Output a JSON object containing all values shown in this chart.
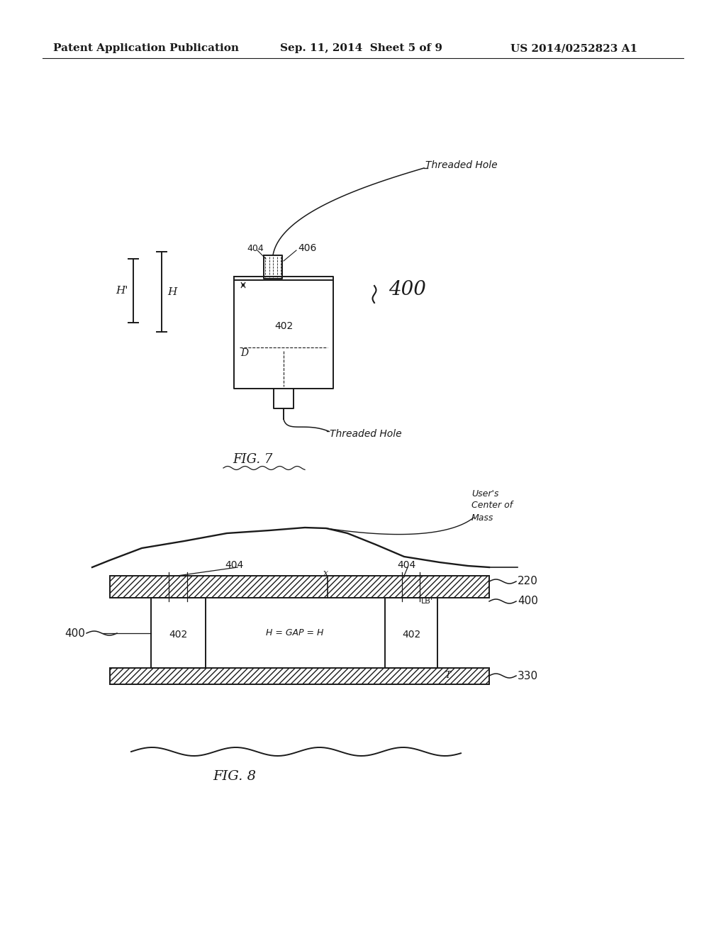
{
  "bg_color": "#ffffff",
  "header_left": "Patent Application Publication",
  "header_center": "Sep. 11, 2014  Sheet 5 of 9",
  "header_right": "US 2014/0252823 A1",
  "fig7_label": "FIG. 7",
  "fig8_label": "FIG. 8",
  "label_400": "400",
  "label_402": "402",
  "label_404": "404",
  "label_406": "406",
  "label_H1": "H'",
  "label_H2": "H",
  "label_threaded_hole_top": "Threaded Hole",
  "label_threaded_hole_bot": "Threaded Hole",
  "label_users_center": "User's\nCenter of\nMass",
  "label_404b": "404",
  "label_404c": "404",
  "label_x": "x",
  "label_220": "220",
  "label_400b": "400",
  "label_400c": "400",
  "label_402b": "402",
  "label_402c": "402",
  "label_H_GAP_H": "H = GAP = H",
  "label_LB": "LB'",
  "label_330": "330",
  "label_T": "T",
  "label_D": "D"
}
